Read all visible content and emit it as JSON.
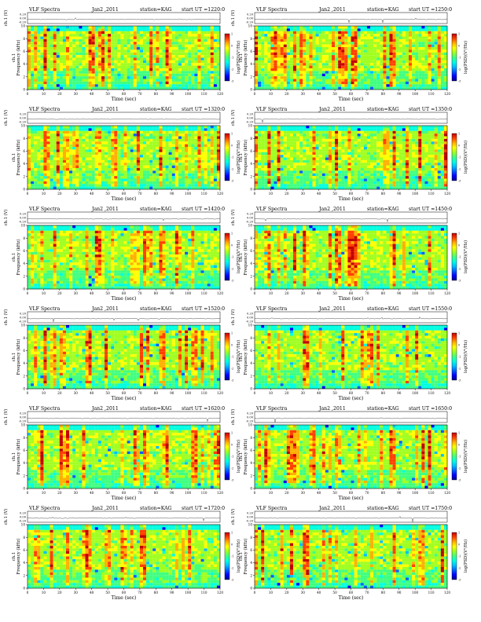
{
  "page": {
    "colorbar": {
      "label": "log(PSD)(V²/Hz)",
      "ticks": [
        "1",
        "0",
        "-1",
        "-2",
        "-3"
      ]
    }
  },
  "chart_data": [
    {
      "type": "heatmap",
      "title": "VLF Spectra",
      "date": "Jan2 ,2011",
      "station": "station=KAG",
      "start_ut": "start  UT  =1220:0",
      "xlabel": "Time  (sec)",
      "ylabel": "Frequency  (kHz)",
      "ylabel_ch": "ch.1",
      "ts_label": "ch.1 (V)",
      "xlim": [
        0,
        120
      ],
      "ylim": [
        0,
        10
      ],
      "x_ticks": [
        0,
        10,
        20,
        30,
        40,
        50,
        60,
        70,
        80,
        90,
        100,
        110,
        120
      ],
      "y_ticks": [
        0,
        2,
        4,
        6,
        8,
        10
      ],
      "ts_ticks": [
        "0.20",
        "0.00",
        "-0.20"
      ],
      "clim": [
        -3,
        1
      ],
      "seed": 11
    },
    {
      "type": "heatmap",
      "title": "VLF Spectra",
      "date": "Jan2 ,2011",
      "station": "station=KAG",
      "start_ut": "start  UT  =1250:0",
      "xlabel": "Time  (sec)",
      "ylabel": "Frequency  (kHz)",
      "ylabel_ch": "ch.1",
      "ts_label": "ch.1 (V)",
      "xlim": [
        0,
        120
      ],
      "ylim": [
        0,
        10
      ],
      "x_ticks": [
        0,
        10,
        20,
        30,
        40,
        50,
        60,
        70,
        80,
        90,
        100,
        110,
        120
      ],
      "y_ticks": [
        0,
        2,
        4,
        6,
        8,
        10
      ],
      "ts_ticks": [
        "0.20",
        "0.00",
        "-0.20"
      ],
      "clim": [
        -3,
        1
      ],
      "seed": 23
    },
    {
      "type": "heatmap",
      "title": "VLF Spectra",
      "date": "Jan2 ,2011",
      "station": "station=KAG",
      "start_ut": "start  UT  =1320:0",
      "xlabel": "Time  (sec)",
      "ylabel": "Frequency  (kHz)",
      "ylabel_ch": "ch.1",
      "ts_label": "ch.1 (V)",
      "xlim": [
        0,
        120
      ],
      "ylim": [
        0,
        10
      ],
      "x_ticks": [
        0,
        10,
        20,
        30,
        40,
        50,
        60,
        70,
        80,
        90,
        100,
        110,
        120
      ],
      "y_ticks": [
        0,
        2,
        4,
        6,
        8,
        10
      ],
      "ts_ticks": [
        "0.20",
        "0.00",
        "-0.20"
      ],
      "clim": [
        -3,
        1
      ],
      "seed": 37
    },
    {
      "type": "heatmap",
      "title": "VLF Spectra",
      "date": "Jan2 ,2011",
      "station": "station=KAG",
      "start_ut": "start  UT  =1350:0",
      "xlabel": "Time  (sec)",
      "ylabel": "Frequency  (kHz)",
      "ylabel_ch": "ch.1",
      "ts_label": "ch.1 (V)",
      "xlim": [
        0,
        120
      ],
      "ylim": [
        0,
        10
      ],
      "x_ticks": [
        0,
        10,
        20,
        30,
        40,
        50,
        60,
        70,
        80,
        90,
        100,
        110,
        120
      ],
      "y_ticks": [
        0,
        2,
        4,
        6,
        8,
        10
      ],
      "ts_ticks": [
        "0.20",
        "0.00",
        "-0.20"
      ],
      "clim": [
        -3,
        1
      ],
      "seed": 41
    },
    {
      "type": "heatmap",
      "title": "VLF Spectra",
      "date": "Jan2 ,2011",
      "station": "station=KAG",
      "start_ut": "start  UT  =1420:0",
      "xlabel": "Time  (sec)",
      "ylabel": "Frequency  (kHz)",
      "ylabel_ch": "ch.1",
      "ts_label": "ch.1 (V)",
      "xlim": [
        0,
        120
      ],
      "ylim": [
        0,
        10
      ],
      "x_ticks": [
        0,
        10,
        20,
        30,
        40,
        50,
        60,
        70,
        80,
        90,
        100,
        110,
        120
      ],
      "y_ticks": [
        0,
        2,
        4,
        6,
        8,
        10
      ],
      "ts_ticks": [
        "0.20",
        "0.00",
        "-0.20"
      ],
      "clim": [
        -3,
        1
      ],
      "seed": 53
    },
    {
      "type": "heatmap",
      "title": "VLF Spectra",
      "date": "Jan2 ,2011",
      "station": "station=KAG",
      "start_ut": "start  UT  =1450:0",
      "xlabel": "Time  (sec)",
      "ylabel": "Frequency  (kHz)",
      "ylabel_ch": "ch.1",
      "ts_label": "ch.1 (V)",
      "xlim": [
        0,
        120
      ],
      "ylim": [
        0,
        10
      ],
      "x_ticks": [
        0,
        10,
        20,
        30,
        40,
        50,
        60,
        70,
        80,
        90,
        100,
        110,
        120
      ],
      "y_ticks": [
        0,
        2,
        4,
        6,
        8,
        10
      ],
      "ts_ticks": [
        "0.20",
        "0.00",
        "-0.20"
      ],
      "clim": [
        -3,
        1
      ],
      "seed": 67
    },
    {
      "type": "heatmap",
      "title": "VLF Spectra",
      "date": "Jan2 ,2011",
      "station": "station=KAG",
      "start_ut": "start  UT  =1520:0",
      "xlabel": "Time  (sec)",
      "ylabel": "Frequency  (kHz)",
      "ylabel_ch": "ch.1",
      "ts_label": "ch.1 (V)",
      "xlim": [
        0,
        120
      ],
      "ylim": [
        0,
        10
      ],
      "x_ticks": [
        0,
        10,
        20,
        30,
        40,
        50,
        60,
        70,
        80,
        90,
        100,
        110,
        120
      ],
      "y_ticks": [
        0,
        2,
        4,
        6,
        8,
        10
      ],
      "ts_ticks": [
        "0.20",
        "0.00",
        "-0.20"
      ],
      "clim": [
        -3,
        1
      ],
      "seed": 71
    },
    {
      "type": "heatmap",
      "title": "VLF Spectra",
      "date": "Jan2 ,2011",
      "station": "station=KAG",
      "start_ut": "start  UT  =1550:0",
      "xlabel": "Time  (sec)",
      "ylabel": "Frequency  (kHz)",
      "ylabel_ch": "ch.1",
      "ts_label": "ch.1 (V)",
      "xlim": [
        0,
        120
      ],
      "ylim": [
        0,
        10
      ],
      "x_ticks": [
        0,
        10,
        20,
        30,
        40,
        50,
        60,
        70,
        80,
        90,
        100,
        110,
        120
      ],
      "y_ticks": [
        0,
        2,
        4,
        6,
        8,
        10
      ],
      "ts_ticks": [
        "0.20",
        "0.00",
        "-0.20"
      ],
      "clim": [
        -3,
        1
      ],
      "seed": 83
    },
    {
      "type": "heatmap",
      "title": "VLF Spectra",
      "date": "Jan2 ,2011",
      "station": "station=KAG",
      "start_ut": "start  UT  =1620:0",
      "xlabel": "Time  (sec)",
      "ylabel": "Frequency  (kHz)",
      "ylabel_ch": "ch.1",
      "ts_label": "ch.1 (V)",
      "xlim": [
        0,
        120
      ],
      "ylim": [
        0,
        10
      ],
      "x_ticks": [
        0,
        10,
        20,
        30,
        40,
        50,
        60,
        70,
        80,
        90,
        100,
        110,
        120
      ],
      "y_ticks": [
        0,
        2,
        4,
        6,
        8,
        10
      ],
      "ts_ticks": [
        "0.20",
        "0.00",
        "-0.20"
      ],
      "clim": [
        -3,
        1
      ],
      "seed": 97
    },
    {
      "type": "heatmap",
      "title": "VLF Spectra",
      "date": "Jan2 ,2011",
      "station": "station=KAG",
      "start_ut": "start  UT  =1650:0",
      "xlabel": "Time  (sec)",
      "ylabel": "Frequency  (kHz)",
      "ylabel_ch": "ch.1",
      "ts_label": "ch.1 (V)",
      "xlim": [
        0,
        120
      ],
      "ylim": [
        0,
        10
      ],
      "x_ticks": [
        0,
        10,
        20,
        30,
        40,
        50,
        60,
        70,
        80,
        90,
        100,
        110,
        120
      ],
      "y_ticks": [
        0,
        2,
        4,
        6,
        8,
        10
      ],
      "ts_ticks": [
        "0.20",
        "0.00",
        "-0.20"
      ],
      "clim": [
        -3,
        1
      ],
      "seed": 101
    },
    {
      "type": "heatmap",
      "title": "VLF Spectra",
      "date": "Jan2 ,2011",
      "station": "station=KAG",
      "start_ut": "start  UT  =1720:0",
      "xlabel": "Time  (sec)",
      "ylabel": "Frequency  (kHz)",
      "ylabel_ch": "ch.1",
      "ts_label": "ch.1 (V)",
      "xlim": [
        0,
        120
      ],
      "ylim": [
        0,
        10
      ],
      "x_ticks": [
        0,
        10,
        20,
        30,
        40,
        50,
        60,
        70,
        80,
        90,
        100,
        110,
        120
      ],
      "y_ticks": [
        0,
        2,
        4,
        6,
        8,
        10
      ],
      "ts_ticks": [
        "0.20",
        "0.00",
        "-0.20"
      ],
      "clim": [
        -3,
        1
      ],
      "seed": 113
    },
    {
      "type": "heatmap",
      "title": "VLF Spectra",
      "date": "Jan2 ,2011",
      "station": "station=KAG",
      "start_ut": "start  UT  =1750:0",
      "xlabel": "Time  (sec)",
      "ylabel": "Frequency  (kHz)",
      "ylabel_ch": "ch.1",
      "ts_label": "ch.1 (V)",
      "xlim": [
        0,
        120
      ],
      "ylim": [
        0,
        10
      ],
      "x_ticks": [
        0,
        10,
        20,
        30,
        40,
        50,
        60,
        70,
        80,
        90,
        100,
        110,
        120
      ],
      "y_ticks": [
        0,
        2,
        4,
        6,
        8,
        10
      ],
      "ts_ticks": [
        "0.20",
        "0.00",
        "-0.20"
      ],
      "clim": [
        -3,
        1
      ],
      "seed": 127
    }
  ]
}
